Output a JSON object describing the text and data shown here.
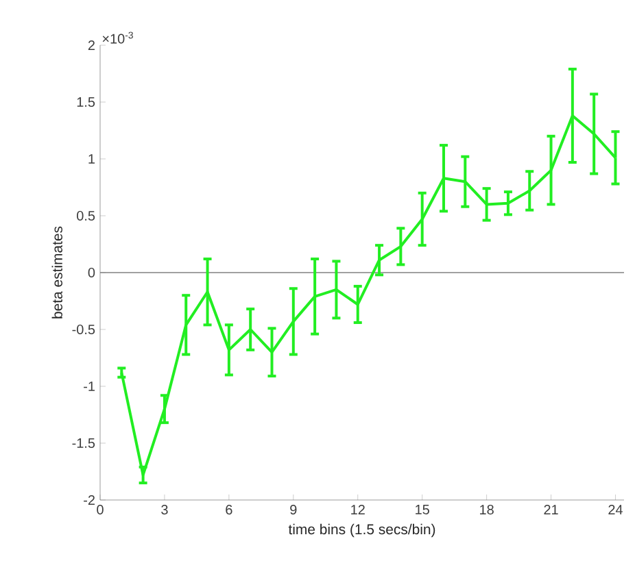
{
  "chart_data": {
    "type": "line",
    "xlabel": "time bins (1.5 secs/bin)",
    "ylabel": "beta estimates",
    "annotations": [
      "×10$^{-3}$"
    ],
    "x": [
      1,
      2,
      3,
      4,
      5,
      6,
      7,
      8,
      9,
      10,
      11,
      12,
      13,
      14,
      15,
      16,
      17,
      18,
      19,
      20,
      21,
      22,
      23,
      24
    ],
    "series": [
      {
        "color": "#22ee22",
        "values": [
          -0.88,
          -1.78,
          -1.2,
          -0.46,
          -0.17,
          -0.68,
          -0.5,
          -0.7,
          -0.43,
          -0.21,
          -0.15,
          -0.28,
          0.11,
          0.23,
          0.47,
          0.83,
          0.8,
          0.6,
          0.61,
          0.72,
          0.9,
          1.38,
          1.22,
          1.01
        ],
        "errors": [
          0.04,
          0.07,
          0.12,
          0.26,
          0.29,
          0.22,
          0.18,
          0.21,
          0.29,
          0.33,
          0.25,
          0.16,
          0.13,
          0.16,
          0.23,
          0.29,
          0.22,
          0.14,
          0.1,
          0.17,
          0.3,
          0.41,
          0.35,
          0.23
        ]
      }
    ],
    "xlim": [
      0,
      24.4
    ],
    "ylim": [
      -2,
      2
    ],
    "xticks": [
      0,
      3,
      6,
      9,
      12,
      15,
      18,
      21,
      24
    ],
    "yticks": [
      -2,
      -1.5,
      -1,
      -0.5,
      0,
      0.5,
      1,
      1.5,
      2
    ],
    "ref_lines": [
      {
        "axis": "y",
        "value": 0,
        "color": "#808080"
      }
    ],
    "marker": "none",
    "line_style": "solid",
    "grid": false
  }
}
